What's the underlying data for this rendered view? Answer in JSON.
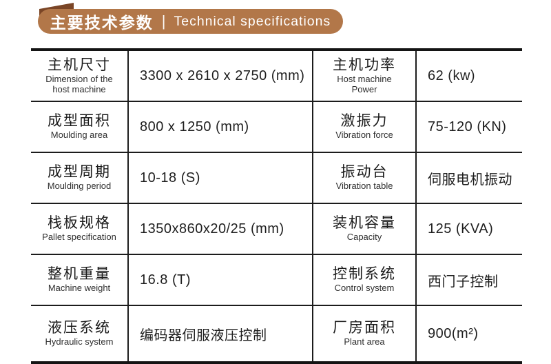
{
  "header": {
    "zh": "主要技术参数",
    "divider": "|",
    "en": "Technical specifications",
    "pill_color": "#b27749",
    "wedge_color": "#7a4526"
  },
  "table": {
    "rows": [
      {
        "c0_zh": "主机尺寸",
        "c0_en": "Dimension of the\nhost machine",
        "c1": "3300 x 2610 x 2750 (mm)",
        "c2_zh": "主机功率",
        "c2_en": "Host machine\nPower",
        "c3": "62 (kw)"
      },
      {
        "c0_zh": "成型面积",
        "c0_en": "Moulding area",
        "c1": "800 x 1250 (mm)",
        "c2_zh": "激振力",
        "c2_en": "Vibration force",
        "c3": "75-120 (KN)"
      },
      {
        "c0_zh": "成型周期",
        "c0_en": "Moulding period",
        "c1": "10-18 (S)",
        "c2_zh": "振动台",
        "c2_en": "Vibration table",
        "c3": "伺服电机振动"
      },
      {
        "c0_zh": "栈板规格",
        "c0_en": "Pallet specification",
        "c1": "1350x860x20/25 (mm)",
        "c2_zh": "装机容量",
        "c2_en": "Capacity",
        "c3": "125 (KVA)"
      },
      {
        "c0_zh": "整机重量",
        "c0_en": "Machine weight",
        "c1": "16.8 (T)",
        "c2_zh": "控制系统",
        "c2_en": "Control system",
        "c3": "西门子控制"
      },
      {
        "c0_zh": "液压系统",
        "c0_en": "Hydraulic system",
        "c1": "编码器伺服液压控制",
        "c2_zh": "厂房面积",
        "c2_en": "Plant area",
        "c3": "900(m²)"
      }
    ]
  }
}
